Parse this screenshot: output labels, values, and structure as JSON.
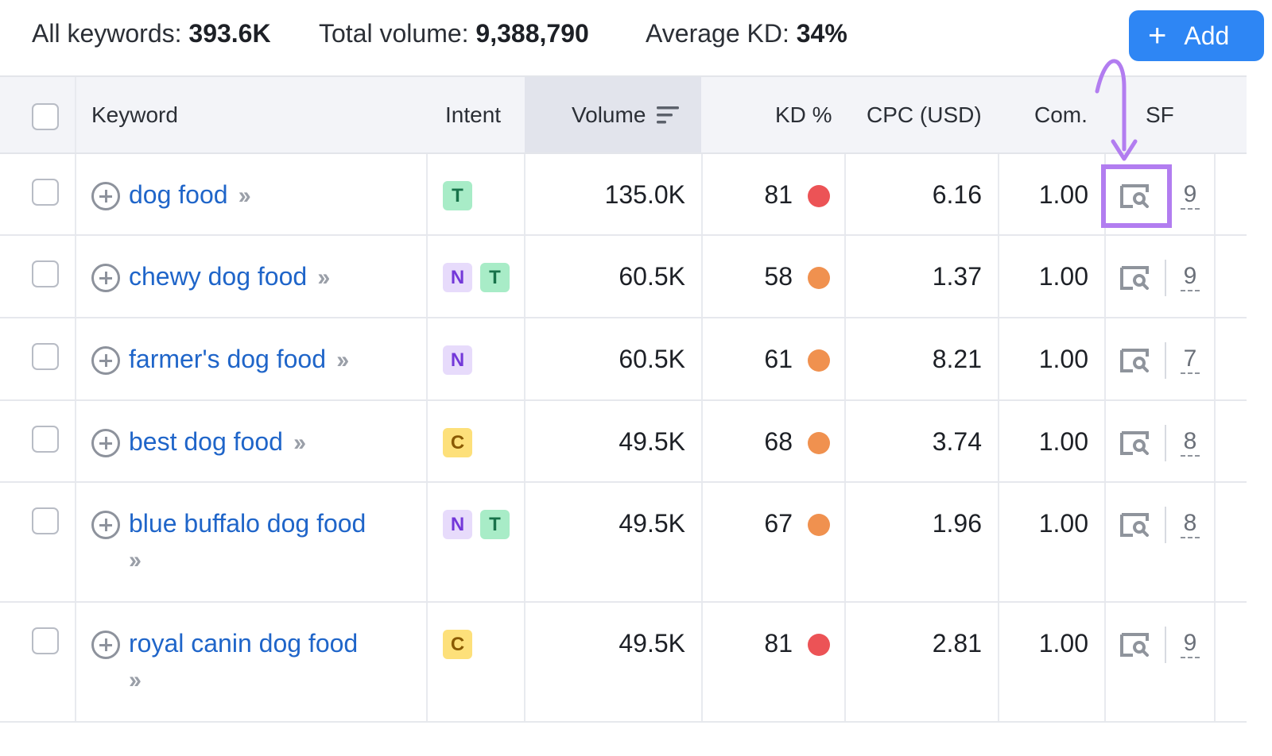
{
  "summary": {
    "all_keywords_label": "All keywords:",
    "all_keywords_value": "393.6K",
    "total_volume_label": "Total volume:",
    "total_volume_value": "9,388,790",
    "avg_kd_label": "Average KD:",
    "avg_kd_value": "34%",
    "add_button": "Add"
  },
  "columns": {
    "keyword": "Keyword",
    "intent": "Intent",
    "volume": "Volume",
    "kd": "KD %",
    "cpc": "CPC (USD)",
    "com": "Com.",
    "sf": "SF"
  },
  "colors": {
    "link": "#1f65c9",
    "kd_red": "#ec5356",
    "kd_orange": "#f0914f",
    "intent_T_bg": "#a8ecc7",
    "intent_T_fg": "#18724a",
    "intent_N_bg": "#e7dbfb",
    "intent_N_fg": "#7338d9",
    "intent_C_bg": "#fde07a",
    "intent_C_fg": "#8a5a00",
    "highlight": "#b27df0",
    "add_button": "#2e86f4"
  },
  "rows": [
    {
      "keyword": "dog food",
      "intents": [
        "T"
      ],
      "volume": "135.0K",
      "kd": "81",
      "kd_color": "red",
      "cpc": "6.16",
      "com": "1.00",
      "sf": "9"
    },
    {
      "keyword": "chewy dog food",
      "intents": [
        "N",
        "T"
      ],
      "volume": "60.5K",
      "kd": "58",
      "kd_color": "orange",
      "cpc": "1.37",
      "com": "1.00",
      "sf": "9"
    },
    {
      "keyword": "farmer's dog food",
      "intents": [
        "N"
      ],
      "volume": "60.5K",
      "kd": "61",
      "kd_color": "orange",
      "cpc": "8.21",
      "com": "1.00",
      "sf": "7"
    },
    {
      "keyword": "best dog food",
      "intents": [
        "C"
      ],
      "volume": "49.5K",
      "kd": "68",
      "kd_color": "orange",
      "cpc": "3.74",
      "com": "1.00",
      "sf": "8"
    },
    {
      "keyword": "blue buffalo dog food",
      "intents": [
        "N",
        "T"
      ],
      "volume": "49.5K",
      "kd": "67",
      "kd_color": "orange",
      "cpc": "1.96",
      "com": "1.00",
      "sf": "8"
    },
    {
      "keyword": "royal canin dog food",
      "intents": [
        "C"
      ],
      "volume": "49.5K",
      "kd": "81",
      "kd_color": "red",
      "cpc": "2.81",
      "com": "1.00",
      "sf": "9"
    }
  ],
  "icons": {
    "add": "plus-icon",
    "sort": "sort-descending-icon",
    "row_add": "plus-circle-icon",
    "keyword_details": "double-chevron-right-icon",
    "serp": "serp-preview-icon",
    "annotation": "arrow-annotation"
  }
}
